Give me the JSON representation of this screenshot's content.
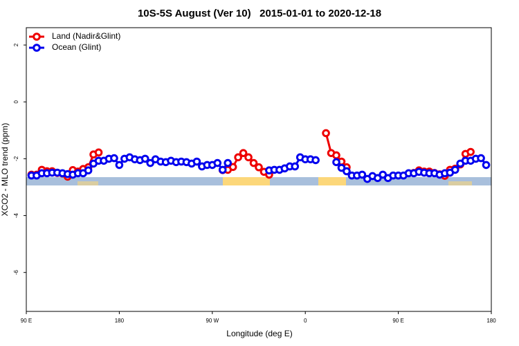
{
  "chart_data": {
    "type": "line",
    "title": "10S-5S August (Ver 10)   2015-01-01 to 2020-12-18",
    "x_label": "Longitude (deg E)",
    "y_label": "XCO2 - MLO trend (ppm)",
    "xlim": [
      90,
      540
    ],
    "ylim": [
      -7.37,
      2.61
    ],
    "xticks": [
      {
        "value": 90,
        "label": "90 E"
      },
      180,
      {
        "value": 270,
        "label": "90 W"
      },
      {
        "value": 360,
        "label": "0"
      },
      {
        "value": 450,
        "label": "90 E"
      },
      {
        "value": 540,
        "label": "180"
      }
    ],
    "yticks": [
      -6,
      -4,
      -2,
      0,
      2
    ],
    "legend": "top-left",
    "x": [
      95,
      100,
      105,
      110,
      115,
      120,
      125,
      130,
      135,
      140,
      145,
      150,
      155,
      160,
      165,
      170,
      175,
      180,
      185,
      190,
      195,
      200,
      205,
      210,
      215,
      220,
      225,
      230,
      235,
      240,
      245,
      250,
      255,
      260,
      265,
      270,
      275,
      280,
      285,
      290,
      295,
      300,
      305,
      310,
      315,
      320,
      325,
      330,
      335,
      340,
      345,
      350,
      355,
      360,
      365,
      370,
      375,
      380,
      385,
      390,
      395,
      400,
      405,
      410,
      415,
      420,
      425,
      430,
      435,
      440,
      445,
      450,
      455,
      460,
      465,
      470,
      475,
      480,
      485,
      490,
      495,
      500,
      505,
      510,
      515,
      520,
      525,
      530,
      535
    ],
    "series": [
      {
        "name": "Land (Nadir&Glint)",
        "color": "#ee0000",
        "values": [
          -2.56,
          -2.56,
          -2.39,
          -2.44,
          -2.44,
          -2.5,
          -2.52,
          -2.63,
          -2.4,
          -2.45,
          -2.36,
          -2.3,
          -1.85,
          -1.78,
          null,
          null,
          null,
          null,
          null,
          null,
          null,
          null,
          null,
          null,
          null,
          null,
          null,
          null,
          null,
          null,
          null,
          null,
          null,
          null,
          null,
          null,
          null,
          -2.4,
          -2.39,
          -2.29,
          -1.95,
          -1.8,
          -1.95,
          -2.15,
          -2.3,
          -2.46,
          -2.56,
          null,
          null,
          null,
          null,
          null,
          null,
          null,
          null,
          null,
          null,
          -1.1,
          -1.8,
          -1.88,
          -2.1,
          -2.3,
          null,
          null,
          null,
          null,
          null,
          null,
          null,
          null,
          null,
          null,
          null,
          null,
          -2.5,
          -2.41,
          -2.45,
          -2.45,
          -2.5,
          -2.55,
          -2.6,
          -2.39,
          -2.35,
          -2.2,
          -1.83,
          -1.76,
          null,
          null,
          null
        ]
      },
      {
        "name": "Ocean (Glint)",
        "color": "#0000ee",
        "values": [
          -2.59,
          -2.59,
          -2.51,
          -2.51,
          -2.49,
          -2.49,
          -2.51,
          -2.54,
          -2.56,
          -2.51,
          -2.51,
          -2.41,
          -2.17,
          -2.07,
          -2.07,
          -2.0,
          -1.98,
          -2.22,
          -2.0,
          -1.95,
          -2.02,
          -2.05,
          -2.0,
          -2.15,
          -2.02,
          -2.1,
          -2.12,
          -2.07,
          -2.12,
          -2.1,
          -2.12,
          -2.17,
          -2.1,
          -2.27,
          -2.22,
          -2.22,
          -2.15,
          -2.39,
          -2.15,
          null,
          null,
          null,
          null,
          null,
          null,
          null,
          -2.41,
          -2.39,
          -2.39,
          -2.34,
          -2.27,
          -2.27,
          -1.95,
          -2.02,
          -2.02,
          -2.05,
          null,
          null,
          null,
          -2.12,
          -2.32,
          -2.44,
          -2.59,
          -2.59,
          -2.56,
          -2.71,
          -2.61,
          -2.68,
          -2.56,
          -2.68,
          -2.59,
          -2.59,
          -2.59,
          -2.51,
          -2.51,
          -2.46,
          -2.49,
          -2.51,
          -2.51,
          -2.56,
          -2.51,
          -2.49,
          -2.39,
          -2.17,
          -2.07,
          -2.07,
          -2.0,
          -1.98,
          -2.22
        ]
      }
    ]
  }
}
